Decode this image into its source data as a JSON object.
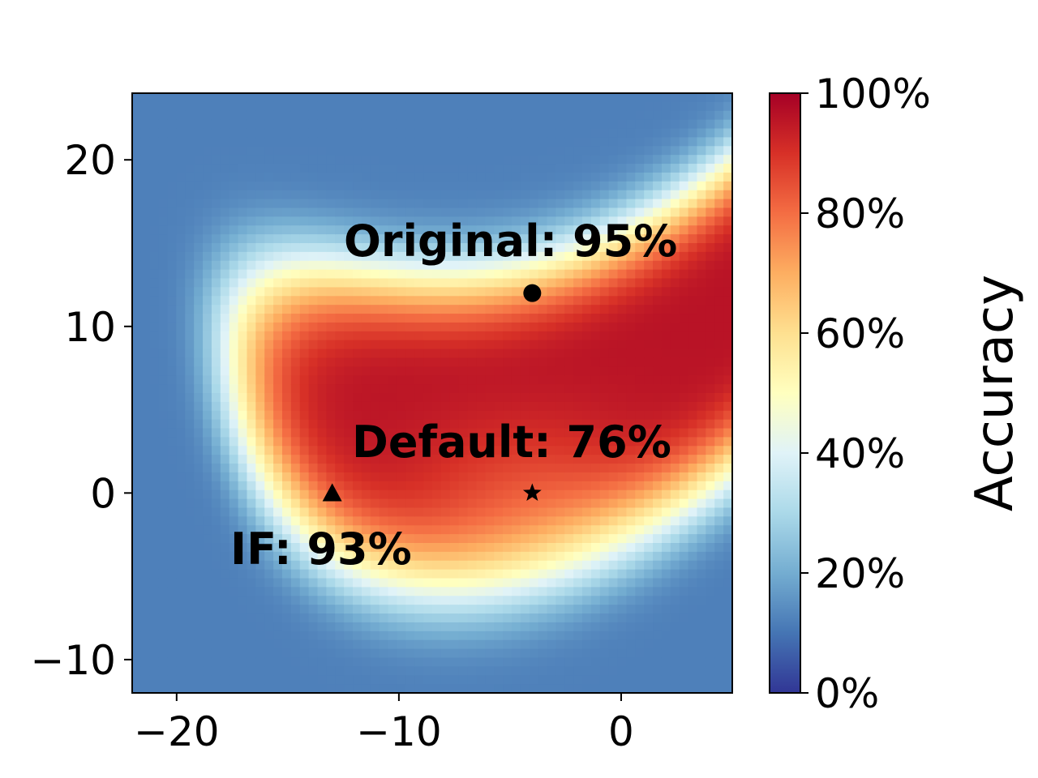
{
  "chart_data": {
    "type": "heatmap",
    "title": "",
    "xlabel": "",
    "ylabel": "",
    "xlim": [
      -22,
      5
    ],
    "ylim": [
      -12,
      24
    ],
    "x_ticks": [
      -20,
      -10,
      0
    ],
    "x_tick_labels": [
      "−20",
      "−10",
      "0"
    ],
    "y_ticks": [
      -10,
      0,
      10,
      20
    ],
    "y_tick_labels": [
      "−10",
      "0",
      "10",
      "20"
    ],
    "colormap": "RdYlBu_r",
    "colorbar": {
      "label": "Accuracy",
      "range": [
        0,
        100
      ],
      "ticks": [
        0,
        20,
        40,
        60,
        80,
        100
      ],
      "tick_labels": [
        "0%",
        "20%",
        "40%",
        "60%",
        "80%",
        "100%"
      ]
    },
    "grid": false,
    "markers": [
      {
        "name": "original",
        "label": "Original: 95%",
        "marker": "circle",
        "x": -4,
        "y": 12,
        "accuracy": 95
      },
      {
        "name": "default",
        "label": "Default: 76%",
        "marker": "star",
        "x": -4,
        "y": 0,
        "accuracy": 76
      },
      {
        "name": "if",
        "label": "IF: 93%",
        "marker": "triangle",
        "x": -13,
        "y": 0,
        "accuracy": 93
      }
    ]
  }
}
